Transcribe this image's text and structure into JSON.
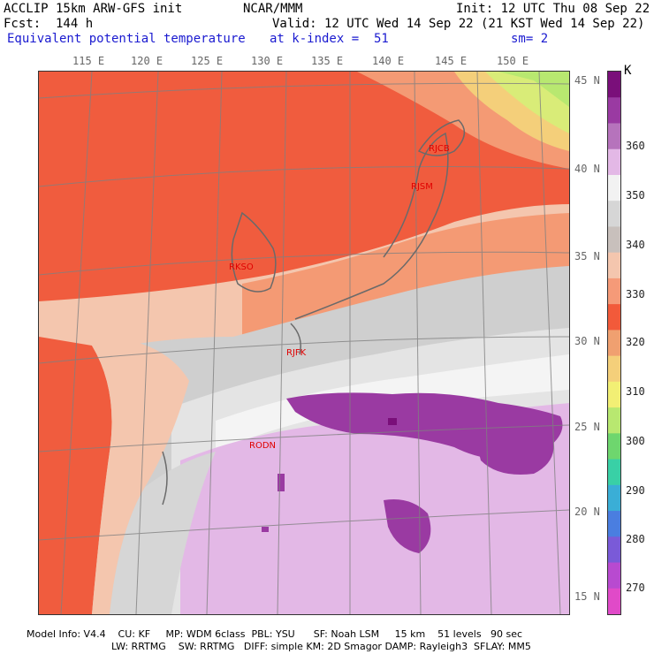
{
  "header": {
    "model_line": "ACCLIP 15km ARW-GFS init",
    "org": "NCAR/MMM",
    "init_line": "Init: 12 UTC Thu 08 Sep 22",
    "fcst_line": "Fcst:  144 h",
    "valid_line": "Valid: 12 UTC Wed 14 Sep 22 (21 KST Wed 14 Sep 22)",
    "field_name": "Equivalent potential temperature",
    "level": "at k-index =  51",
    "smoothing": "sm= 2"
  },
  "longitude_ticks": [
    "115 E",
    "120 E",
    "125 E",
    "130 E",
    "135 E",
    "140 E",
    "145 E",
    "150 E"
  ],
  "latitude_ticks": [
    "45 N",
    "40 N",
    "35 N",
    "30 N",
    "25 N",
    "20 N",
    "15 N"
  ],
  "colorbar": {
    "unit": "K",
    "labels": [
      "360",
      "350",
      "340",
      "330",
      "320",
      "310",
      "300",
      "290",
      "280",
      "270"
    ],
    "colors": [
      "#7a0f7a",
      "#9a3aa2",
      "#b673bc",
      "#e3b8e6",
      "#f2f2f2",
      "#d6d6d6",
      "#c8c0bc",
      "#f4c6ae",
      "#f59a78",
      "#f25a3a",
      "#f0a070",
      "#f4cf7a",
      "#f2ef74",
      "#b8e870",
      "#6ed66e",
      "#39d0a6",
      "#3aaed6",
      "#4a7ee0",
      "#7a5ad8",
      "#b84ad0",
      "#e04ac8"
    ]
  },
  "stations": [
    {
      "id": "RJCB"
    },
    {
      "id": "RJSM"
    },
    {
      "id": "RKSO"
    },
    {
      "id": "RJFK"
    },
    {
      "id": "RODN"
    }
  ],
  "footer": {
    "line1": "Model Info: V4.4    CU: KF     MP: WDM 6class  PBL: YSU      SF: Noah LSM     15 km    51 levels   90 sec",
    "line2": "LW: RRTMG    SW: RRTMG   DIFF: simple KM: 2D Smagor DAMP: Rayleigh3  SFLAY: MM5"
  }
}
